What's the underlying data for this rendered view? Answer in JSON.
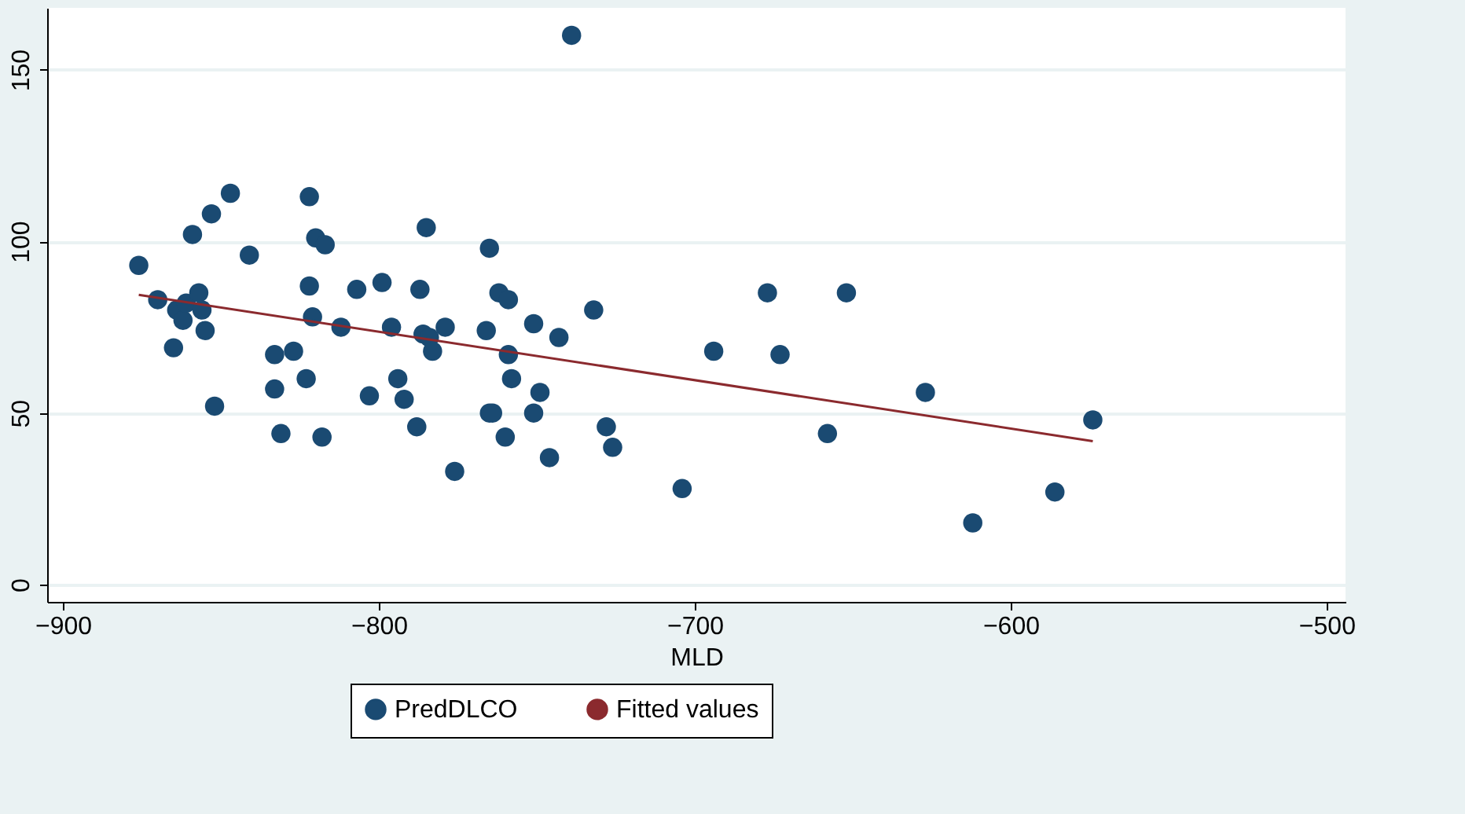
{
  "chart_data": {
    "type": "scatter",
    "xlabel": "MLD",
    "xlim": [
      -905,
      -494
    ],
    "ylim": [
      -5,
      168
    ],
    "xticks": [
      -900,
      -800,
      -700,
      -600,
      -500
    ],
    "yticks": [
      0,
      50,
      100,
      150
    ],
    "grid": "y",
    "legend": "bottom",
    "series": [
      {
        "name": "PredDLCO",
        "marker": "circle",
        "color": "#1a4a72",
        "x": [
          -876,
          -870,
          -865,
          -864,
          -862,
          -861,
          -859,
          -857,
          -856,
          -855,
          -853,
          -852,
          -847,
          -841,
          -833,
          -833,
          -831,
          -827,
          -823,
          -822,
          -822,
          -821,
          -820,
          -818,
          -817,
          -812,
          -807,
          -803,
          -799,
          -796,
          -794,
          -792,
          -788,
          -787,
          -786,
          -785,
          -784,
          -783,
          -779,
          -776,
          -766,
          -765,
          -765,
          -764,
          -762,
          -760,
          -759,
          -759,
          -758,
          -751,
          -751,
          -749,
          -746,
          -743,
          -739,
          -732,
          -728,
          -726,
          -704,
          -694,
          -677,
          -673,
          -658,
          -652,
          -627,
          -612,
          -586,
          -574
        ],
        "values": [
          93,
          83,
          69,
          80,
          77,
          82,
          102,
          85,
          80,
          74,
          108,
          52,
          114,
          96,
          57,
          67,
          44,
          68,
          60,
          87,
          113,
          78,
          101,
          43,
          99,
          75,
          86,
          55,
          88,
          75,
          60,
          54,
          46,
          86,
          73,
          104,
          72,
          68,
          75,
          33,
          74,
          98,
          50,
          50,
          85,
          43,
          83,
          67,
          60,
          76,
          50,
          56,
          37,
          72,
          160,
          80,
          46,
          40,
          28,
          68,
          85,
          67,
          44,
          85,
          56,
          18,
          27,
          48
        ]
      },
      {
        "name": "Fitted values",
        "type": "line",
        "marker": "none",
        "color": "#8b2a2e",
        "x": [
          -876,
          -574
        ],
        "values": [
          84.4,
          41.8
        ]
      }
    ]
  }
}
